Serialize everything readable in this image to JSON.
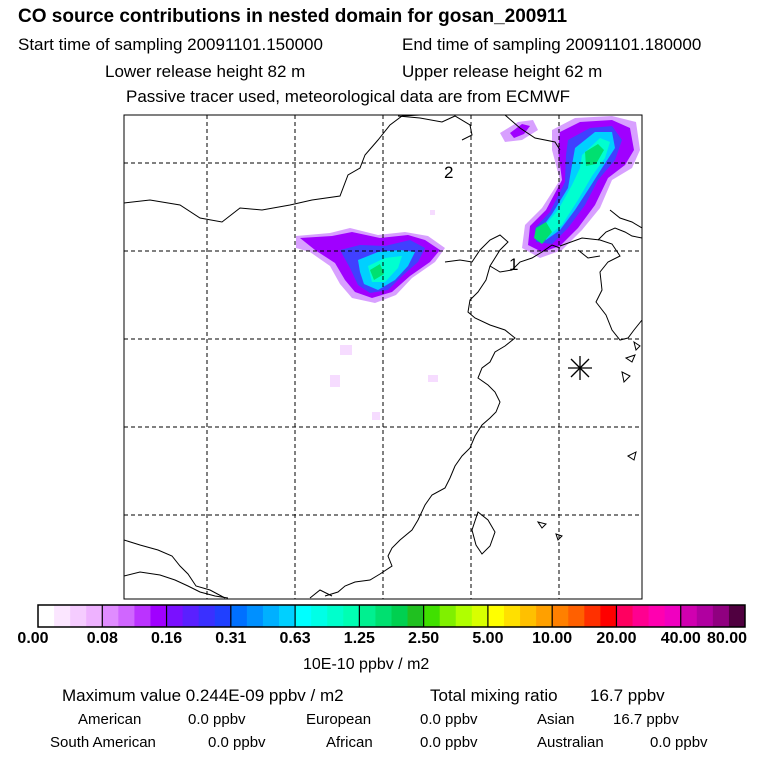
{
  "header": {
    "title": "CO  source contributions in nested domain for gosan_200911",
    "start_time": "Start time of sampling 20091101.150000",
    "end_time": "End time of sampling 20091101.180000",
    "lower_release": "Lower release height   82 m",
    "upper_release": "Upper release height   62 m",
    "tracer_note": "Passive tracer used, meteorological data are from ECMWF"
  },
  "map": {
    "labels": {
      "point_1": "1",
      "point_2": "2"
    },
    "plume_colors": [
      "#d8a0ff",
      "#a000ff",
      "#4040ff",
      "#00d0ff",
      "#00ffd0",
      "#00e070"
    ]
  },
  "colorbar": {
    "tick_labels": [
      "0.00",
      "0.08",
      "0.16",
      "0.31",
      "0.63",
      "1.25",
      "2.50",
      "5.00",
      "10.00",
      "20.00",
      "40.00",
      "80.00"
    ],
    "colors": [
      "#ffffff",
      "#fbe6ff",
      "#f5ccff",
      "#eeb2ff",
      "#e08cff",
      "#d066ff",
      "#bb33ff",
      "#a000ff",
      "#7a10ff",
      "#5a20ff",
      "#3a30ff",
      "#2040ff",
      "#0070ff",
      "#0090ff",
      "#00b0ff",
      "#00d0ff",
      "#00ffff",
      "#00ffe6",
      "#00ffcc",
      "#00ffb3",
      "#00f090",
      "#00e070",
      "#00d050",
      "#20c020",
      "#40e000",
      "#80f000",
      "#b0ff00",
      "#d8ff00",
      "#ffff00",
      "#ffe000",
      "#ffc000",
      "#ffa000",
      "#ff8000",
      "#ff6000",
      "#ff3000",
      "#ff0000",
      "#ff0060",
      "#ff0090",
      "#ff00b0",
      "#f000c0",
      "#d000b0",
      "#b000a0",
      "#900080",
      "#500040"
    ],
    "units": "10E-10 ppbv / m2"
  },
  "summary": {
    "max_value": "Maximum value  0.244E-09 ppbv / m2",
    "total_label": "Total mixing ratio",
    "total_value": "16.7 ppbv",
    "regions": [
      {
        "name": "American",
        "value": "0.0 ppbv"
      },
      {
        "name": "European",
        "value": "0.0 ppbv"
      },
      {
        "name": "Asian",
        "value": "16.7 ppbv"
      },
      {
        "name": "South American",
        "value": "0.0 ppbv"
      },
      {
        "name": "African",
        "value": "0.0 ppbv"
      },
      {
        "name": "Australian",
        "value": "0.0 ppbv"
      }
    ]
  }
}
